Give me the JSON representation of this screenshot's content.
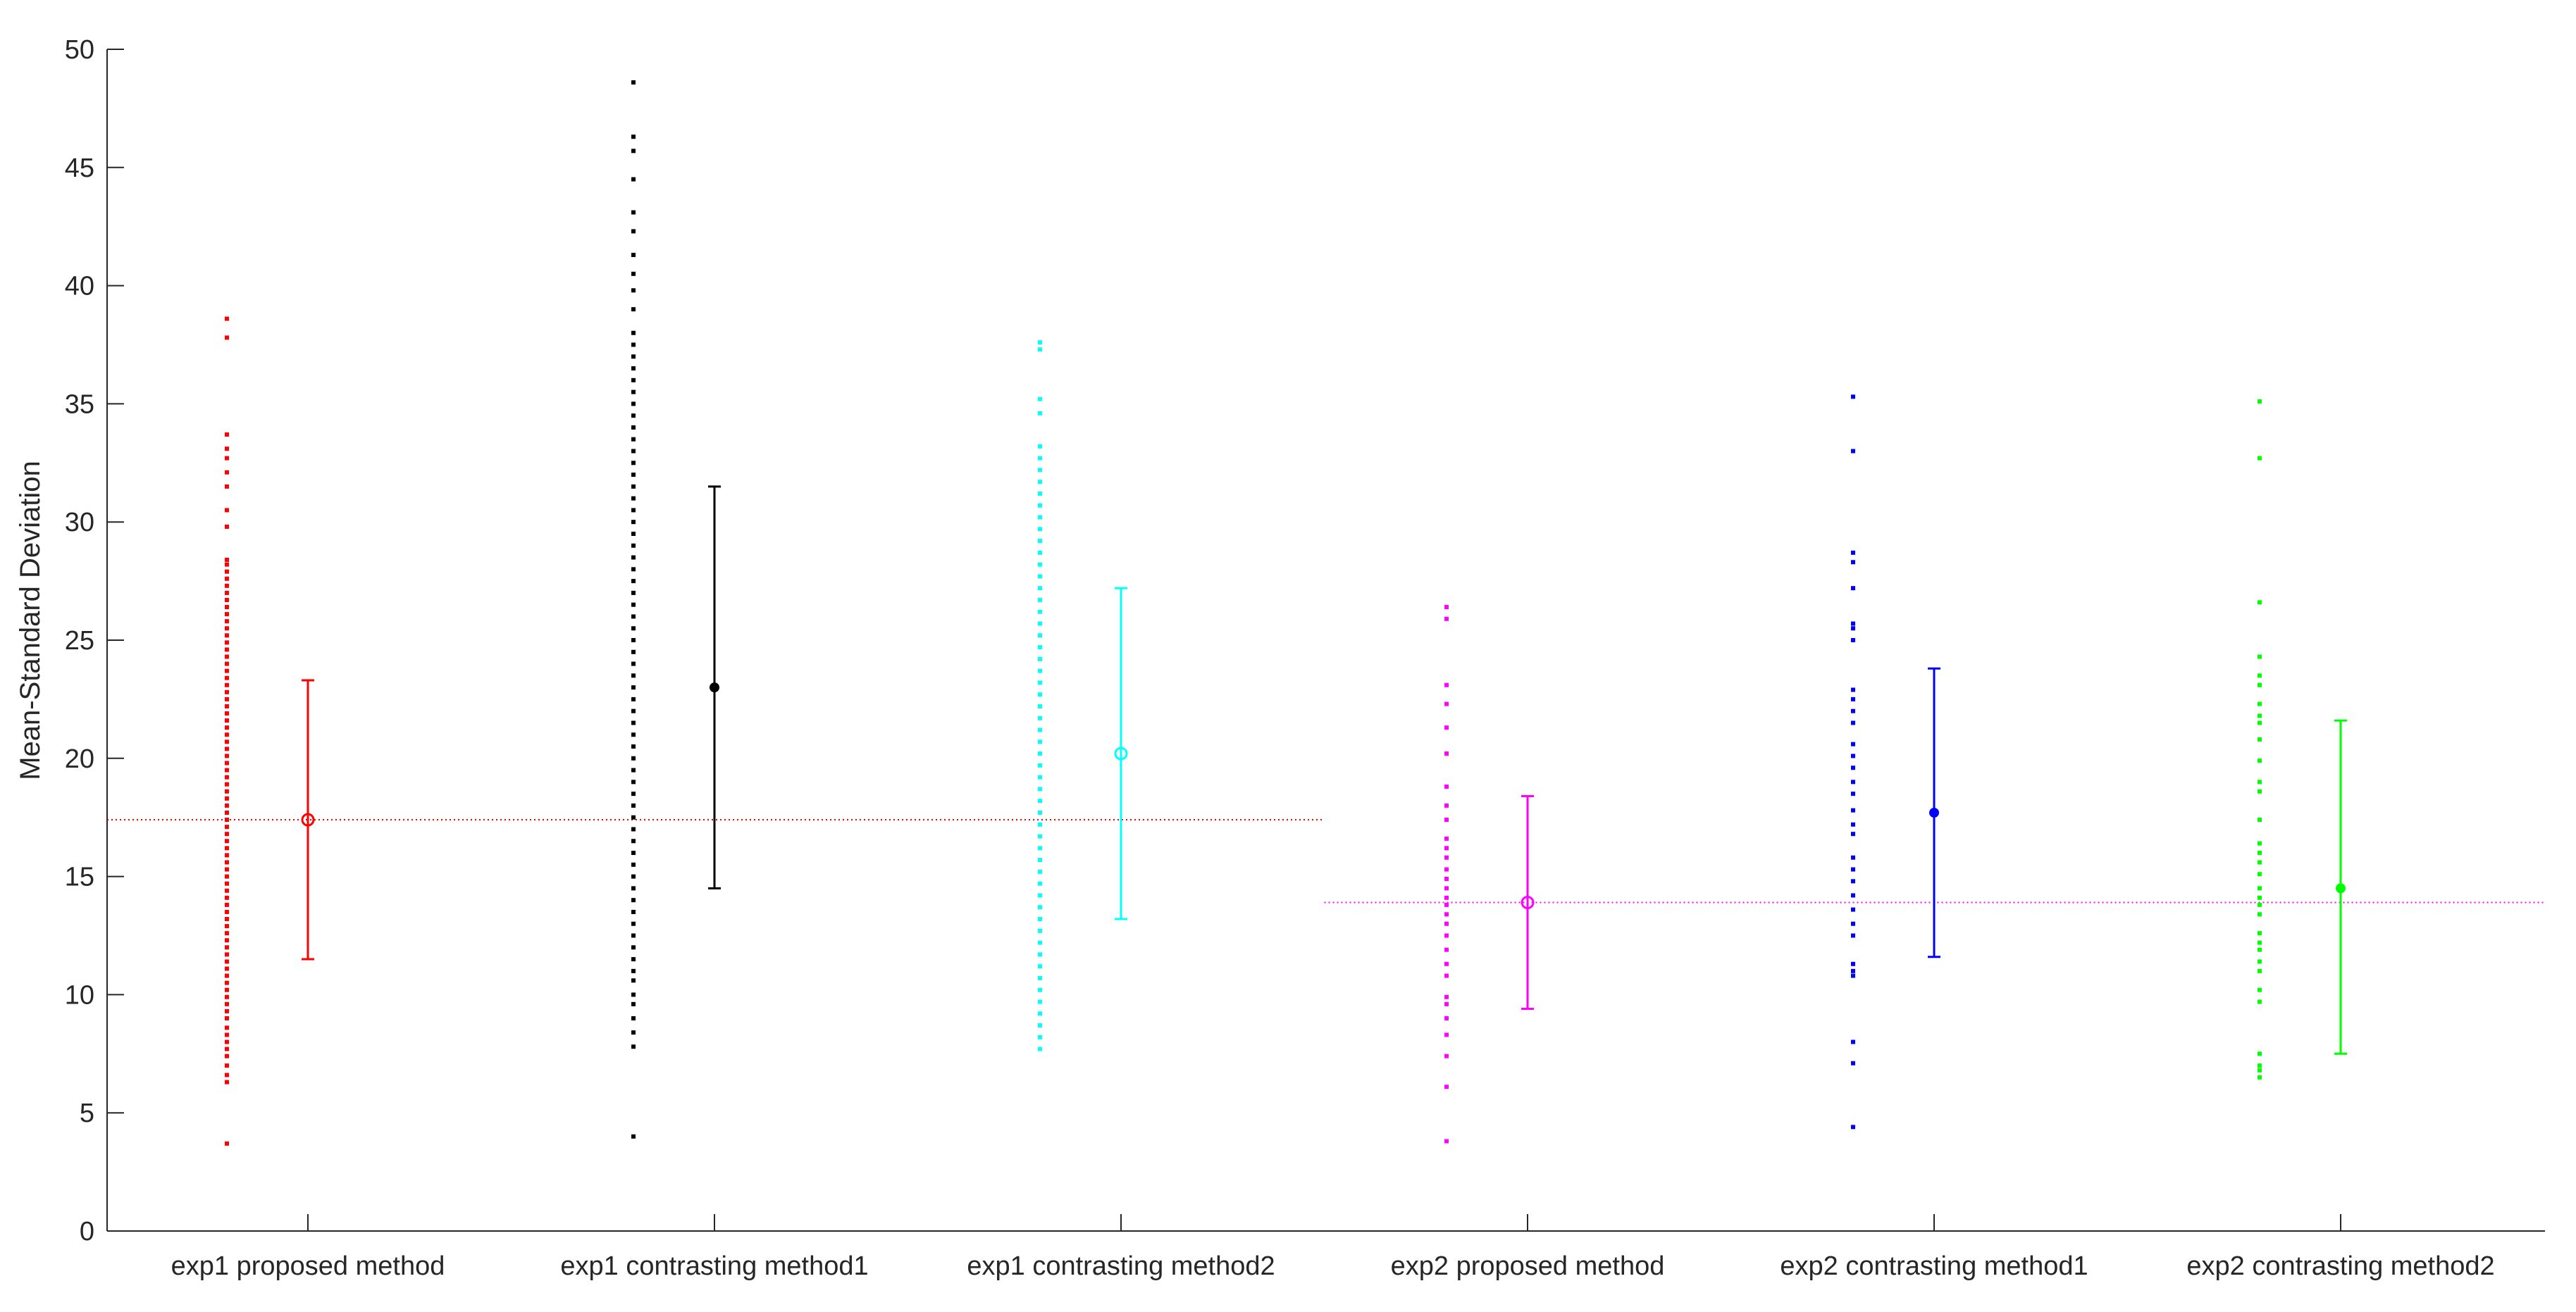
{
  "chart_data": {
    "type": "scatter",
    "title": "",
    "xlabel": "",
    "ylabel": "Mean-Standard Deviation",
    "ylim": [
      0,
      50
    ],
    "yticks": [
      0,
      5,
      10,
      15,
      20,
      25,
      30,
      35,
      40,
      45,
      50
    ],
    "grid": false,
    "categories": [
      "exp1 proposed method",
      "exp1 contrasting method1",
      "exp1 contrasting method2",
      "exp2 proposed method",
      "exp2 contrasting method1",
      "exp2 contrasting method2"
    ],
    "series": [
      {
        "color": "#ff0000",
        "mean_marker": "circle",
        "mean": 17.4,
        "err_low": 11.5,
        "err_high": 23.3,
        "points": [
          3.7,
          6.3,
          6.6,
          7.0,
          7.4,
          7.7,
          8.0,
          8.3,
          8.6,
          9.0,
          9.3,
          9.6,
          9.9,
          10.2,
          10.5,
          10.8,
          11.1,
          11.4,
          11.7,
          12.0,
          12.3,
          12.6,
          12.9,
          13.2,
          13.5,
          13.8,
          14.1,
          14.4,
          14.7,
          15.0,
          15.3,
          15.6,
          15.9,
          16.2,
          16.5,
          16.8,
          17.1,
          17.4,
          17.7,
          18.0,
          18.3,
          18.6,
          18.9,
          19.2,
          19.5,
          19.8,
          20.1,
          20.4,
          20.7,
          21.0,
          21.3,
          21.6,
          21.9,
          22.2,
          22.5,
          22.8,
          23.1,
          23.4,
          23.7,
          24.0,
          24.3,
          24.6,
          24.9,
          25.2,
          25.5,
          25.8,
          26.1,
          26.4,
          26.7,
          27.0,
          27.3,
          27.6,
          27.9,
          28.2,
          28.4,
          29.8,
          30.5,
          31.5,
          32.1,
          32.7,
          33.1,
          33.7,
          37.8,
          38.6
        ]
      },
      {
        "color": "#000000",
        "mean_marker": "asterisk",
        "mean": 23.0,
        "err_low": 14.5,
        "err_high": 31.5,
        "points": [
          4.0,
          7.8,
          8.4,
          9.0,
          9.6,
          10.0,
          10.6,
          11.0,
          11.5,
          12.0,
          12.5,
          13.0,
          13.5,
          14.0,
          14.5,
          15.0,
          15.5,
          16.0,
          16.5,
          17.0,
          17.5,
          18.0,
          18.5,
          19.0,
          19.5,
          20.0,
          20.5,
          21.0,
          21.5,
          22.0,
          22.5,
          23.0,
          23.5,
          24.0,
          24.5,
          25.0,
          25.5,
          26.0,
          26.5,
          27.0,
          27.5,
          28.0,
          28.5,
          29.0,
          29.5,
          30.0,
          30.5,
          31.0,
          31.5,
          32.0,
          32.5,
          33.0,
          33.5,
          34.0,
          34.5,
          35.0,
          35.5,
          36.0,
          36.5,
          37.0,
          37.5,
          38.0,
          39.0,
          39.8,
          40.5,
          41.3,
          42.3,
          43.1,
          44.5,
          45.7,
          46.3,
          48.6
        ]
      },
      {
        "color": "#00ffff",
        "mean_marker": "circle",
        "mean": 20.2,
        "err_low": 13.2,
        "err_high": 27.2,
        "points": [
          7.7,
          8.2,
          8.7,
          9.2,
          9.7,
          10.2,
          10.7,
          11.2,
          11.7,
          12.2,
          12.7,
          13.2,
          13.7,
          14.2,
          14.7,
          15.2,
          15.7,
          16.2,
          16.7,
          17.2,
          17.7,
          18.2,
          18.7,
          19.2,
          19.7,
          20.2,
          20.7,
          21.2,
          21.7,
          22.2,
          22.7,
          23.2,
          23.7,
          24.2,
          24.7,
          25.2,
          25.7,
          26.2,
          26.7,
          27.2,
          27.7,
          28.2,
          28.7,
          29.2,
          29.7,
          30.2,
          30.7,
          31.2,
          31.7,
          32.2,
          32.7,
          33.2,
          34.6,
          35.2,
          37.3,
          37.6
        ]
      },
      {
        "color": "#ff00ff",
        "mean_marker": "circle",
        "mean": 13.9,
        "err_low": 9.4,
        "err_high": 18.4,
        "points": [
          3.8,
          6.1,
          7.4,
          8.3,
          9.0,
          9.6,
          9.9,
          10.8,
          11.3,
          11.9,
          12.5,
          13.0,
          13.4,
          13.8,
          14.1,
          14.5,
          14.9,
          15.3,
          15.8,
          16.2,
          16.6,
          17.4,
          18.0,
          18.8,
          20.2,
          21.3,
          22.3,
          23.1,
          25.9,
          26.4
        ]
      },
      {
        "color": "#0000ff",
        "mean_marker": "asterisk",
        "mean": 17.7,
        "err_low": 11.6,
        "err_high": 23.8,
        "points": [
          4.4,
          7.1,
          8.0,
          10.8,
          11.0,
          11.3,
          12.5,
          13.0,
          13.6,
          14.2,
          14.8,
          15.3,
          15.8,
          16.8,
          17.2,
          17.8,
          18.5,
          19.0,
          19.6,
          20.1,
          20.6,
          21.5,
          22.0,
          22.5,
          22.9,
          25.0,
          25.5,
          25.7,
          27.2,
          28.3,
          28.7,
          33.0,
          35.3
        ]
      },
      {
        "color": "#00ff00",
        "mean_marker": "asterisk",
        "mean": 14.5,
        "err_low": 7.5,
        "err_high": 21.6,
        "points": [
          6.5,
          6.8,
          7.0,
          7.5,
          9.7,
          10.2,
          11.0,
          11.4,
          11.9,
          12.2,
          12.6,
          13.4,
          13.8,
          14.1,
          14.5,
          15.1,
          15.6,
          16.0,
          16.4,
          17.4,
          18.6,
          19.0,
          19.9,
          20.8,
          21.5,
          21.8,
          22.3,
          23.1,
          23.5,
          24.3,
          26.6,
          32.7,
          35.1
        ]
      }
    ],
    "reference_lines": [
      {
        "y": 17.4,
        "color": "#ff0000",
        "style": "dotted",
        "from_category": 0,
        "to_category": 2
      },
      {
        "y": 13.9,
        "color": "#ff00ff",
        "style": "dotted",
        "from_category": 3,
        "to_category": 5
      }
    ]
  }
}
